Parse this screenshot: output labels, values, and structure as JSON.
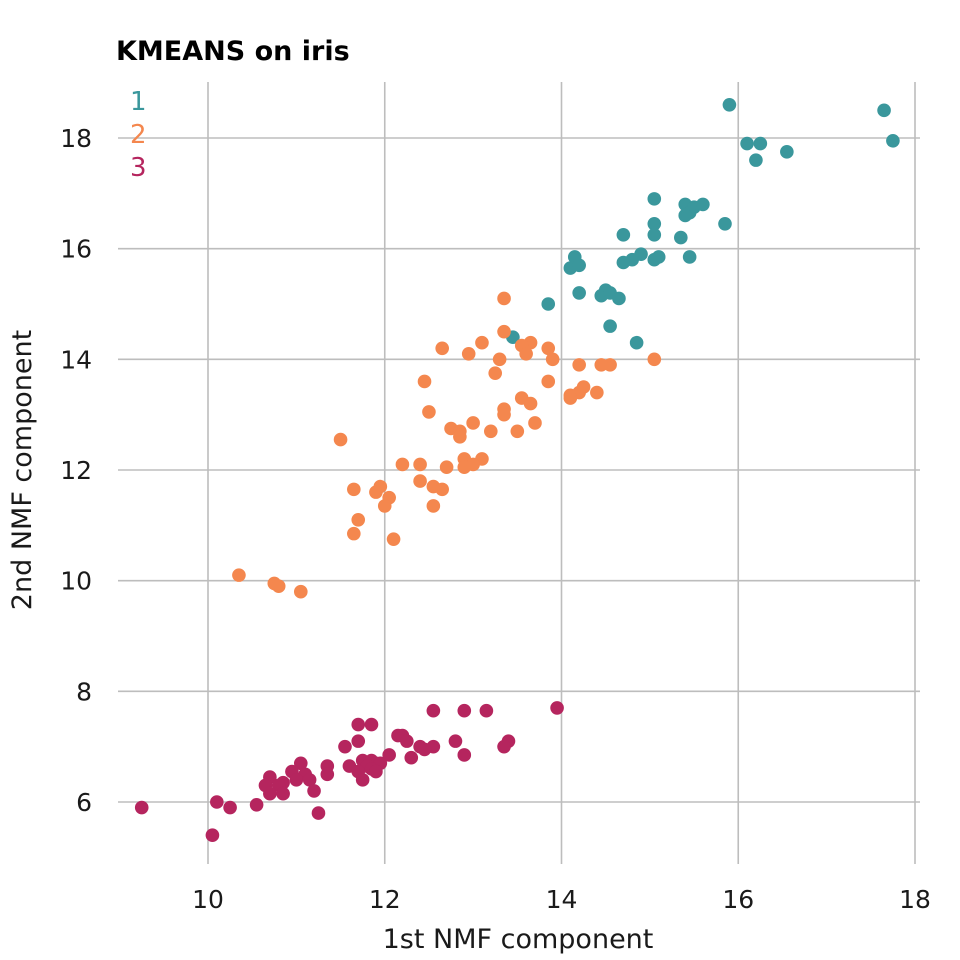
{
  "chart_data": {
    "type": "scatter",
    "title": "KMEANS on iris",
    "xlabel": "1st NMF component",
    "ylabel": "2nd NMF component",
    "xlim": [
      9,
      18.1
    ],
    "ylim": [
      5,
      19.1
    ],
    "xticks": [
      10,
      12,
      14,
      16,
      18
    ],
    "yticks": [
      6,
      8,
      10,
      12,
      14,
      16,
      18
    ],
    "grid": true,
    "legend_position": "top-left",
    "series": [
      {
        "name": "1",
        "color": "#3a979c",
        "points": [
          [
            15.9,
            18.6
          ],
          [
            17.65,
            18.5
          ],
          [
            17.75,
            17.95
          ],
          [
            16.1,
            17.9
          ],
          [
            16.25,
            17.9
          ],
          [
            16.2,
            17.6
          ],
          [
            16.55,
            17.75
          ],
          [
            15.05,
            16.9
          ],
          [
            15.4,
            16.8
          ],
          [
            15.5,
            16.75
          ],
          [
            15.6,
            16.8
          ],
          [
            15.45,
            16.65
          ],
          [
            15.4,
            16.6
          ],
          [
            15.05,
            16.45
          ],
          [
            15.85,
            16.45
          ],
          [
            14.7,
            16.25
          ],
          [
            15.05,
            16.25
          ],
          [
            15.35,
            16.2
          ],
          [
            14.9,
            15.9
          ],
          [
            14.8,
            15.8
          ],
          [
            15.1,
            15.85
          ],
          [
            15.45,
            15.85
          ],
          [
            14.7,
            15.75
          ],
          [
            15.05,
            15.8
          ],
          [
            14.15,
            15.85
          ],
          [
            14.1,
            15.65
          ],
          [
            14.2,
            15.7
          ],
          [
            14.2,
            15.2
          ],
          [
            14.45,
            15.15
          ],
          [
            14.5,
            15.25
          ],
          [
            14.55,
            15.2
          ],
          [
            14.65,
            15.1
          ],
          [
            13.85,
            15.0
          ],
          [
            14.55,
            14.6
          ],
          [
            14.85,
            14.3
          ],
          [
            13.45,
            14.4
          ]
        ]
      },
      {
        "name": "2",
        "color": "#f4874e",
        "points": [
          [
            13.35,
            15.1
          ],
          [
            13.35,
            14.5
          ],
          [
            13.1,
            14.3
          ],
          [
            12.65,
            14.2
          ],
          [
            12.95,
            14.1
          ],
          [
            13.65,
            14.3
          ],
          [
            13.55,
            14.25
          ],
          [
            13.85,
            14.2
          ],
          [
            13.6,
            14.1
          ],
          [
            13.9,
            14.0
          ],
          [
            13.3,
            14.0
          ],
          [
            15.05,
            14.0
          ],
          [
            14.55,
            13.9
          ],
          [
            14.45,
            13.9
          ],
          [
            14.2,
            13.9
          ],
          [
            13.25,
            13.75
          ],
          [
            13.85,
            13.6
          ],
          [
            12.45,
            13.6
          ],
          [
            14.25,
            13.5
          ],
          [
            14.4,
            13.4
          ],
          [
            14.1,
            13.35
          ],
          [
            14.2,
            13.4
          ],
          [
            14.1,
            13.3
          ],
          [
            13.55,
            13.3
          ],
          [
            13.65,
            13.2
          ],
          [
            13.35,
            13.1
          ],
          [
            13.35,
            13.0
          ],
          [
            12.5,
            13.05
          ],
          [
            13.0,
            12.85
          ],
          [
            13.7,
            12.85
          ],
          [
            12.75,
            12.75
          ],
          [
            12.85,
            12.7
          ],
          [
            13.5,
            12.7
          ],
          [
            13.2,
            12.7
          ],
          [
            12.85,
            12.6
          ],
          [
            11.5,
            12.55
          ],
          [
            12.9,
            12.2
          ],
          [
            13.1,
            12.2
          ],
          [
            13.0,
            12.1
          ],
          [
            12.9,
            12.05
          ],
          [
            12.2,
            12.1
          ],
          [
            12.4,
            12.1
          ],
          [
            12.7,
            12.05
          ],
          [
            12.4,
            11.8
          ],
          [
            12.55,
            11.7
          ],
          [
            12.65,
            11.65
          ],
          [
            11.95,
            11.7
          ],
          [
            11.65,
            11.65
          ],
          [
            11.9,
            11.6
          ],
          [
            12.05,
            11.5
          ],
          [
            12.0,
            11.35
          ],
          [
            12.55,
            11.35
          ],
          [
            11.7,
            11.1
          ],
          [
            11.65,
            10.85
          ],
          [
            12.1,
            10.75
          ],
          [
            10.35,
            10.1
          ],
          [
            10.75,
            9.95
          ],
          [
            10.8,
            9.9
          ],
          [
            11.05,
            9.8
          ]
        ]
      },
      {
        "name": "3",
        "color": "#b5255e",
        "points": [
          [
            13.95,
            7.7
          ],
          [
            12.55,
            7.65
          ],
          [
            12.9,
            7.65
          ],
          [
            13.15,
            7.65
          ],
          [
            11.7,
            7.4
          ],
          [
            11.85,
            7.4
          ],
          [
            12.15,
            7.2
          ],
          [
            12.2,
            7.2
          ],
          [
            12.25,
            7.1
          ],
          [
            12.8,
            7.1
          ],
          [
            13.4,
            7.1
          ],
          [
            13.35,
            7.0
          ],
          [
            11.55,
            7.0
          ],
          [
            11.7,
            7.1
          ],
          [
            12.4,
            7.0
          ],
          [
            12.55,
            7.0
          ],
          [
            12.45,
            6.95
          ],
          [
            12.05,
            6.85
          ],
          [
            12.9,
            6.85
          ],
          [
            12.3,
            6.8
          ],
          [
            11.75,
            6.75
          ],
          [
            11.85,
            6.75
          ],
          [
            11.9,
            6.7
          ],
          [
            11.95,
            6.7
          ],
          [
            11.6,
            6.65
          ],
          [
            11.8,
            6.65
          ],
          [
            11.35,
            6.65
          ],
          [
            11.85,
            6.6
          ],
          [
            11.7,
            6.55
          ],
          [
            11.05,
            6.7
          ],
          [
            10.95,
            6.55
          ],
          [
            11.1,
            6.5
          ],
          [
            11.35,
            6.5
          ],
          [
            11.9,
            6.55
          ],
          [
            10.7,
            6.45
          ],
          [
            11.0,
            6.4
          ],
          [
            11.15,
            6.4
          ],
          [
            10.85,
            6.35
          ],
          [
            10.65,
            6.3
          ],
          [
            10.8,
            6.3
          ],
          [
            11.75,
            6.4
          ],
          [
            11.2,
            6.2
          ],
          [
            10.85,
            6.15
          ],
          [
            10.7,
            6.15
          ],
          [
            10.1,
            6.0
          ],
          [
            10.55,
            5.95
          ],
          [
            9.25,
            5.9
          ],
          [
            10.25,
            5.9
          ],
          [
            11.25,
            5.8
          ],
          [
            10.05,
            5.4
          ]
        ]
      }
    ]
  }
}
